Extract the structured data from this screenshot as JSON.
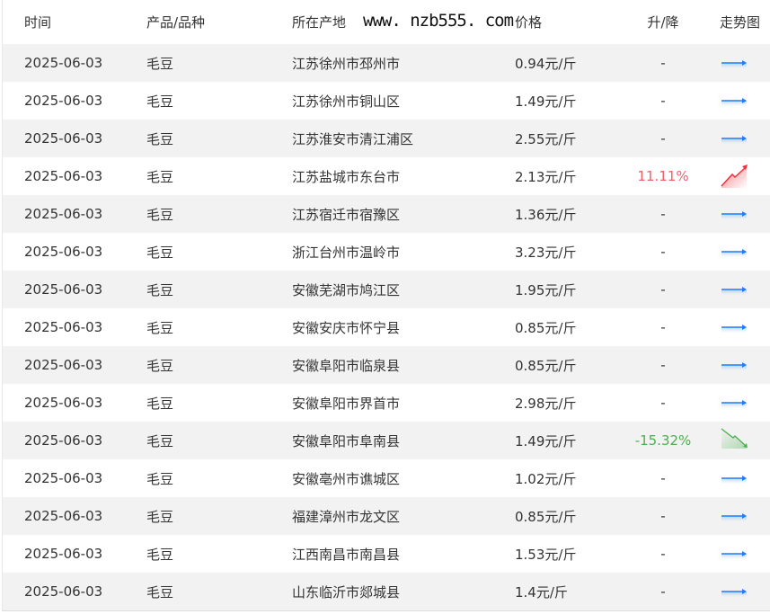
{
  "headers": [
    "时间",
    "产品/品种",
    "所在产地",
    "价格",
    "升/降",
    "走势图"
  ],
  "rows": [
    {
      "date": "2025-06-03",
      "product": "毛豆",
      "location": "江苏徐州市邳州市",
      "price": "0.94元/斤",
      "change": "-",
      "trend": "flat"
    },
    {
      "date": "2025-06-03",
      "product": "毛豆",
      "location": "江苏徐州市铜山区",
      "price": "1.49元/斤",
      "change": "-",
      "trend": "flat"
    },
    {
      "date": "2025-06-03",
      "product": "毛豆",
      "location": "江苏淮安市清江浦区",
      "price": "2.55元/斤",
      "change": "-",
      "trend": "flat"
    },
    {
      "date": "2025-06-03",
      "product": "毛豆",
      "location": "江苏盐城市东台市",
      "price": "2.13元/斤",
      "change": "11.11%",
      "trend": "up"
    },
    {
      "date": "2025-06-03",
      "product": "毛豆",
      "location": "江苏宿迁市宿豫区",
      "price": "1.36元/斤",
      "change": "-",
      "trend": "flat"
    },
    {
      "date": "2025-06-03",
      "product": "毛豆",
      "location": "浙江台州市温岭市",
      "price": "3.23元/斤",
      "change": "-",
      "trend": "flat"
    },
    {
      "date": "2025-06-03",
      "product": "毛豆",
      "location": "安徽芜湖市鸠江区",
      "price": "1.95元/斤",
      "change": "-",
      "trend": "flat"
    },
    {
      "date": "2025-06-03",
      "product": "毛豆",
      "location": "安徽安庆市怀宁县",
      "price": "0.85元/斤",
      "change": "-",
      "trend": "flat"
    },
    {
      "date": "2025-06-03",
      "product": "毛豆",
      "location": "安徽阜阳市临泉县",
      "price": "0.85元/斤",
      "change": "-",
      "trend": "flat"
    },
    {
      "date": "2025-06-03",
      "product": "毛豆",
      "location": "安徽阜阳市界首市",
      "price": "2.98元/斤",
      "change": "-",
      "trend": "flat"
    },
    {
      "date": "2025-06-03",
      "product": "毛豆",
      "location": "安徽阜阳市阜南县",
      "price": "1.49元/斤",
      "change": "-15.32%",
      "trend": "down"
    },
    {
      "date": "2025-06-03",
      "product": "毛豆",
      "location": "安徽亳州市谯城区",
      "price": "1.02元/斤",
      "change": "-",
      "trend": "flat"
    },
    {
      "date": "2025-06-03",
      "product": "毛豆",
      "location": "福建漳州市龙文区",
      "price": "0.85元/斤",
      "change": "-",
      "trend": "flat"
    },
    {
      "date": "2025-06-03",
      "product": "毛豆",
      "location": "江西南昌市南昌县",
      "price": "1.53元/斤",
      "change": "-",
      "trend": "flat"
    },
    {
      "date": "2025-06-03",
      "product": "毛豆",
      "location": "山东临沂市郯城县",
      "price": "1.4元/斤",
      "change": "-",
      "trend": "flat"
    }
  ],
  "colors": {
    "up": "#f0606a",
    "down": "#4caf50",
    "flat": "#1e7bff"
  },
  "watermark": "www. nzb555. com"
}
